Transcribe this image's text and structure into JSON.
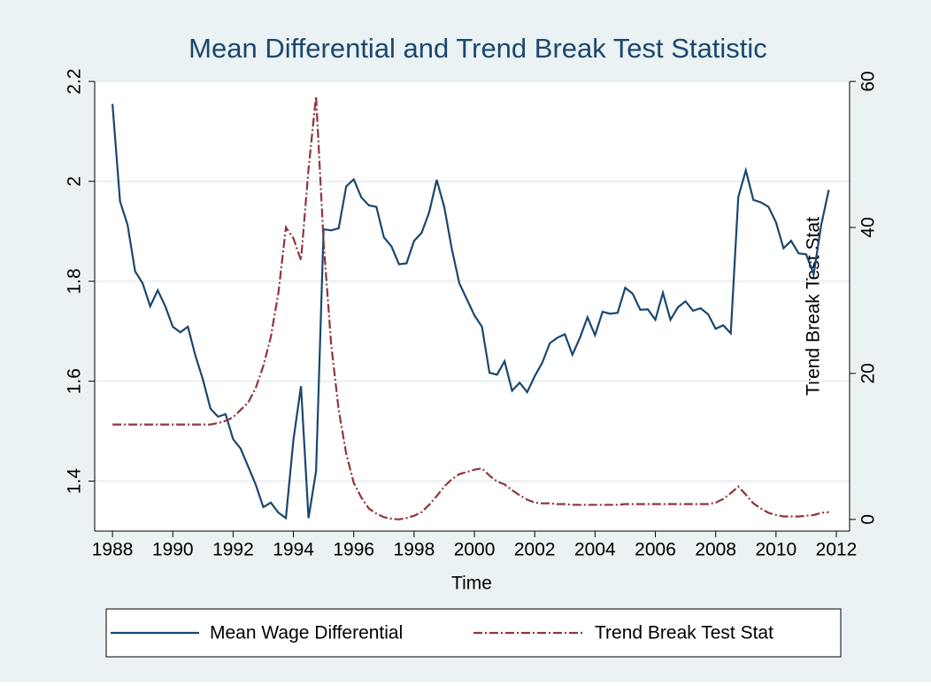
{
  "chart_data": {
    "type": "line",
    "title": "Mean Differential and Trend Break Test Statistic",
    "x_label": "Time",
    "y2_label": "Trend Break Test Stat",
    "x": [
      1988,
      1988.25,
      1988.5,
      1988.75,
      1989,
      1989.25,
      1989.5,
      1989.75,
      1990,
      1990.25,
      1990.5,
      1990.75,
      1991,
      1991.25,
      1991.5,
      1991.75,
      1992,
      1992.25,
      1992.5,
      1992.75,
      1993,
      1993.25,
      1993.5,
      1993.75,
      1994,
      1994.25,
      1994.5,
      1994.75,
      1995,
      1995.25,
      1995.5,
      1995.75,
      1996,
      1996.25,
      1996.5,
      1996.75,
      1997,
      1997.25,
      1997.5,
      1997.75,
      1998,
      1998.25,
      1998.5,
      1998.75,
      1999,
      1999.25,
      1999.5,
      1999.75,
      2000,
      2000.25,
      2000.5,
      2000.75,
      2001,
      2001.25,
      2001.5,
      2001.75,
      2002,
      2002.25,
      2002.5,
      2002.75,
      2003,
      2003.25,
      2003.5,
      2003.75,
      2004,
      2004.25,
      2004.5,
      2004.75,
      2005,
      2005.25,
      2005.5,
      2005.75,
      2006,
      2006.25,
      2006.5,
      2006.75,
      2007,
      2007.25,
      2007.5,
      2007.75,
      2008,
      2008.25,
      2008.5,
      2008.75,
      2009,
      2009.25,
      2009.5,
      2009.75,
      2010,
      2010.25,
      2010.5,
      2010.75,
      2011,
      2011.25,
      2011.5,
      2011.75
    ],
    "series": [
      {
        "name": "Mean Wage Differential",
        "color": "#1a476f",
        "axis": "y",
        "dash": "solid",
        "values": [
          2.155,
          1.96,
          1.913,
          1.82,
          1.796,
          1.75,
          1.782,
          1.75,
          1.709,
          1.698,
          1.709,
          1.651,
          1.603,
          1.545,
          1.529,
          1.534,
          1.484,
          1.465,
          1.429,
          1.393,
          1.348,
          1.357,
          1.337,
          1.326,
          1.483,
          1.59,
          1.326,
          1.42,
          1.904,
          1.902,
          1.906,
          1.99,
          2.004,
          1.968,
          1.952,
          1.949,
          1.888,
          1.87,
          1.834,
          1.836,
          1.881,
          1.897,
          1.938,
          2.003,
          1.949,
          1.865,
          1.796,
          1.764,
          1.732,
          1.709,
          1.617,
          1.613,
          1.64,
          1.581,
          1.597,
          1.578,
          1.61,
          1.637,
          1.676,
          1.687,
          1.694,
          1.653,
          1.687,
          1.728,
          1.692,
          1.739,
          1.735,
          1.737,
          1.787,
          1.775,
          1.743,
          1.744,
          1.723,
          1.777,
          1.723,
          1.748,
          1.76,
          1.741,
          1.746,
          1.734,
          1.705,
          1.712,
          1.696,
          1.969,
          2.022,
          1.963,
          1.958,
          1.949,
          1.918,
          1.866,
          1.881,
          1.856,
          1.854,
          1.814,
          1.913,
          1.983
        ]
      },
      {
        "name": "Trend Break Test Stat",
        "color": "#90353b",
        "axis": "y2",
        "dash": "dashdot",
        "values": [
          13,
          13,
          13,
          13,
          13,
          13,
          13,
          13,
          13,
          13,
          13,
          13,
          13,
          13,
          13.2,
          13.5,
          14,
          15,
          16,
          18,
          21,
          25,
          31,
          40,
          38.5,
          35.5,
          48,
          58,
          38,
          24,
          15,
          9,
          5,
          3,
          1.5,
          0.8,
          0.3,
          0.1,
          0,
          0.2,
          0.5,
          1,
          2,
          3.2,
          4.5,
          5.5,
          6.2,
          6.5,
          6.8,
          7,
          6,
          5.2,
          4.8,
          4,
          3.3,
          2.7,
          2.3,
          2.2,
          2.2,
          2.1,
          2.1,
          2,
          2,
          2,
          2,
          2,
          2,
          2,
          2.1,
          2.1,
          2.1,
          2.1,
          2.1,
          2.1,
          2.1,
          2.1,
          2.1,
          2.1,
          2.1,
          2.1,
          2.3,
          2.8,
          3.6,
          4.5,
          3.4,
          2.2,
          1.5,
          0.9,
          0.6,
          0.4,
          0.4,
          0.4,
          0.5,
          0.6,
          0.9,
          1
        ]
      }
    ],
    "xlim": [
      1987.41,
      2012.44
    ],
    "xticks": [
      1988,
      1990,
      1992,
      1994,
      1996,
      1998,
      2000,
      2002,
      2004,
      2006,
      2008,
      2010,
      2012
    ],
    "ylim": [
      1.3,
      2.2
    ],
    "yticks": [
      1.4,
      1.6,
      1.8,
      2,
      2.2
    ],
    "y2lim": [
      -1.6,
      60
    ],
    "y2ticks": [
      0,
      20,
      40,
      60
    ],
    "grid": true,
    "legend": "bottom"
  }
}
